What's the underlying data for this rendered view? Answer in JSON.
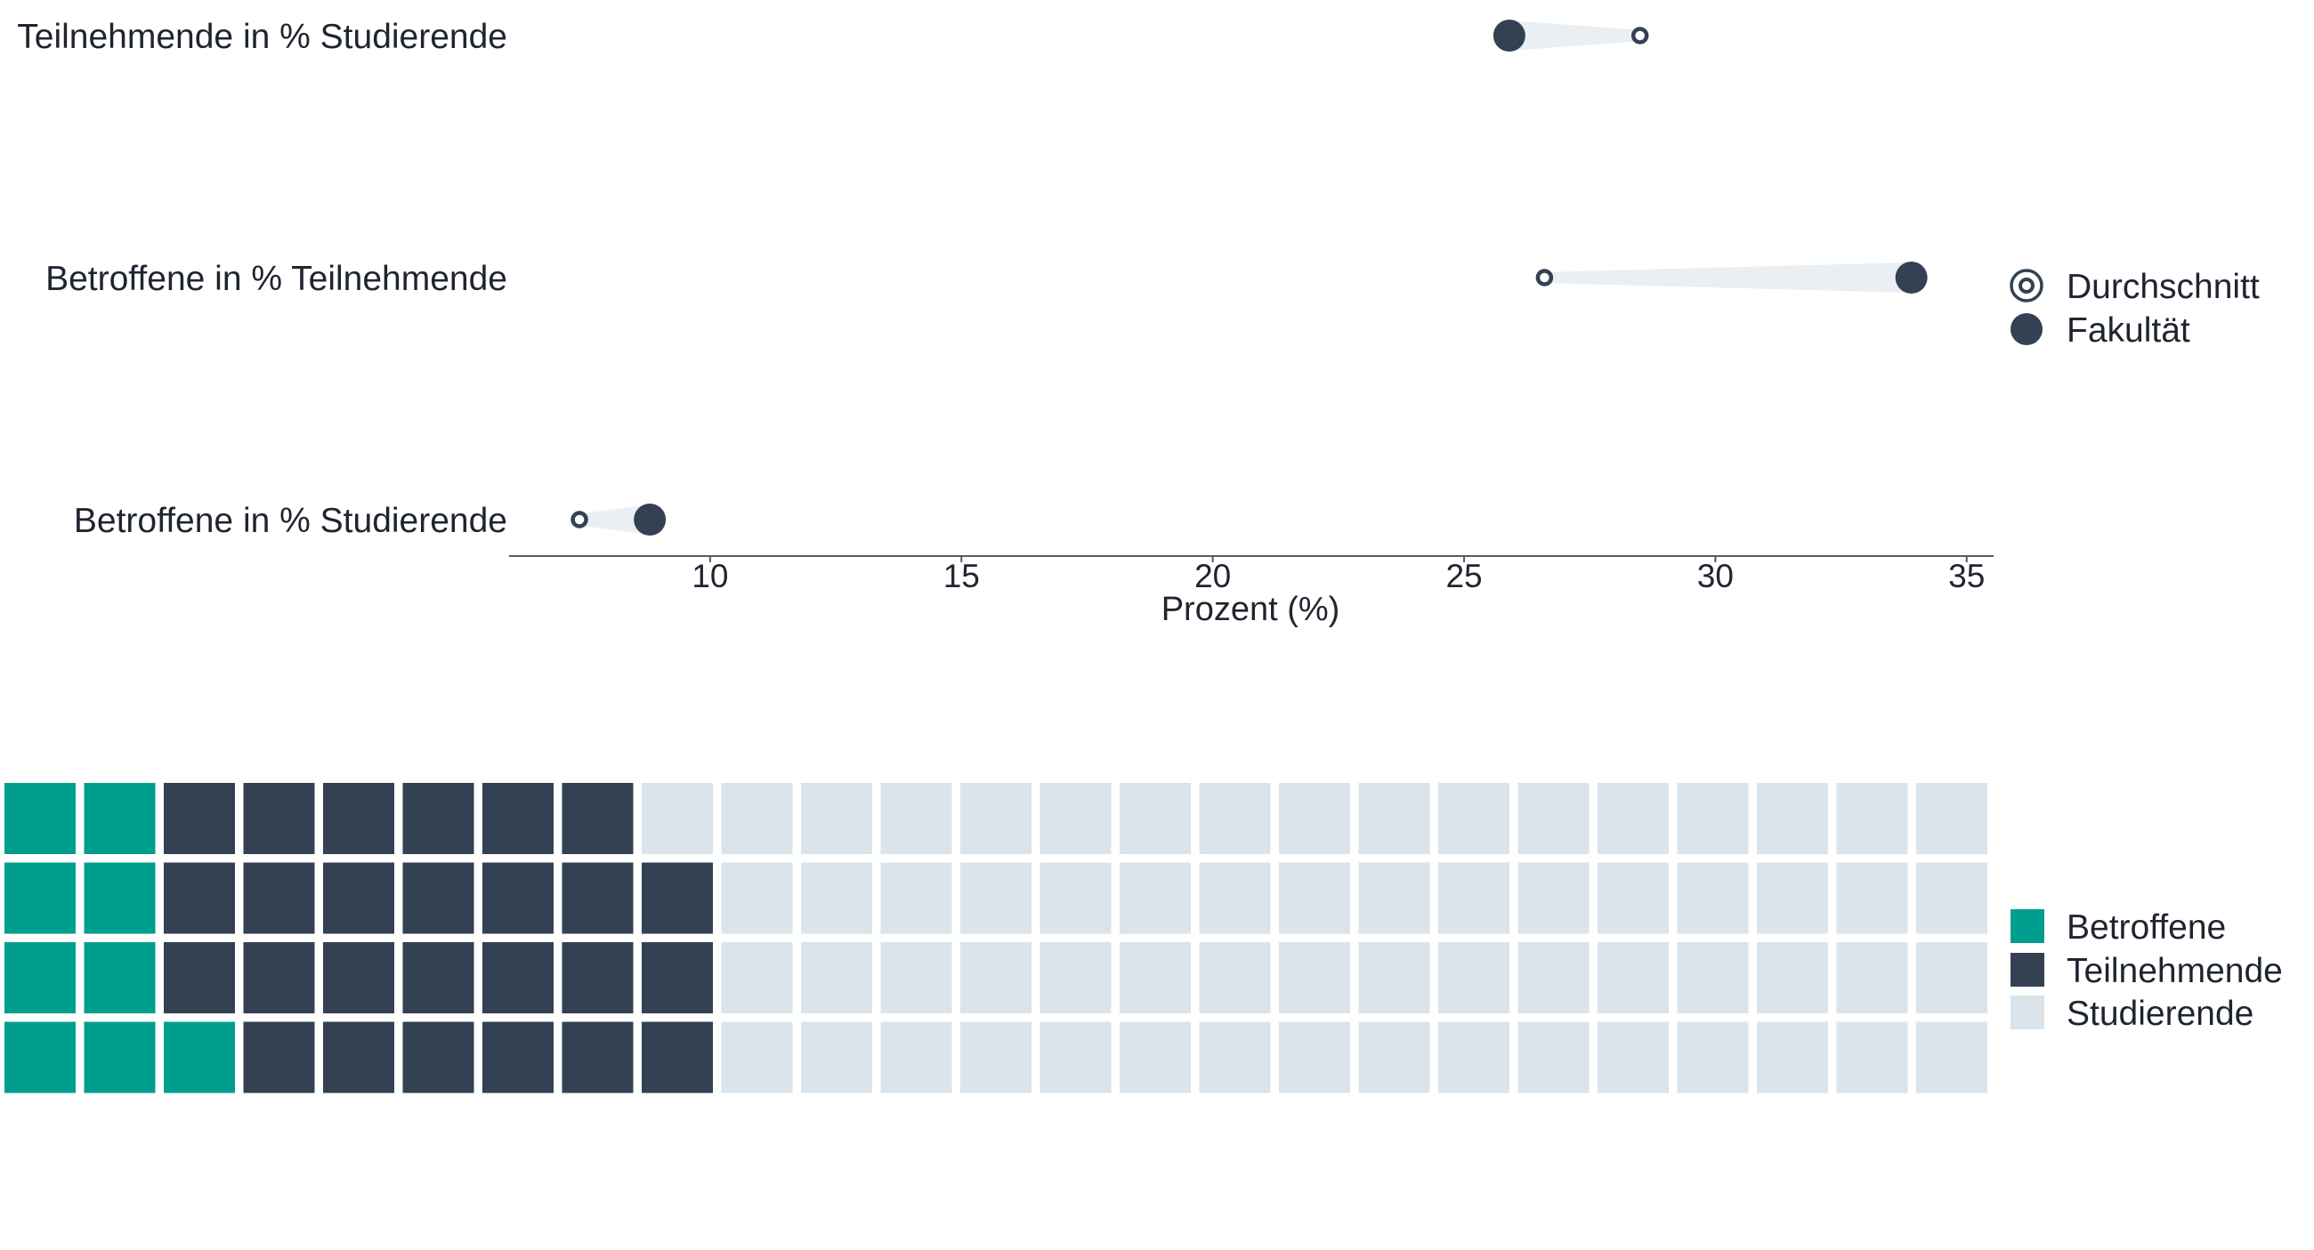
{
  "colors": {
    "dark": "#334152",
    "teal": "#009e8f",
    "light": "#dae4ea",
    "connector": "#eaeff3",
    "axis": "#555b63",
    "text": "#1f2430"
  },
  "chart_data": [
    {
      "type": "dumbbell",
      "xlabel": "Prozent (%)",
      "ylabel": "",
      "xlim": [
        6,
        35.5
      ],
      "xticks": [
        10,
        15,
        20,
        25,
        30,
        35
      ],
      "categories": [
        "Teilnehmende in % Studierende",
        "Betroffene in % Teilnehmende",
        "Betroffene in % Studierende"
      ],
      "series": [
        {
          "name": "Durchschnitt",
          "values": [
            28.5,
            26.6,
            7.4
          ]
        },
        {
          "name": "Fakultät",
          "values": [
            25.9,
            33.9,
            8.8
          ]
        }
      ],
      "legend": {
        "position": "right",
        "items": [
          "Durchschnitt",
          "Fakultät"
        ]
      },
      "grid": false
    },
    {
      "type": "waffle",
      "rows": 4,
      "columns": 25,
      "fill_order": "column-major, bottom-to-top",
      "counts": {
        "Betroffene": 9,
        "Teilnehmende": 26,
        "Studierende": 65
      },
      "legend": {
        "position": "right",
        "items": [
          "Betroffene",
          "Teilnehmende",
          "Studierende"
        ]
      }
    }
  ]
}
